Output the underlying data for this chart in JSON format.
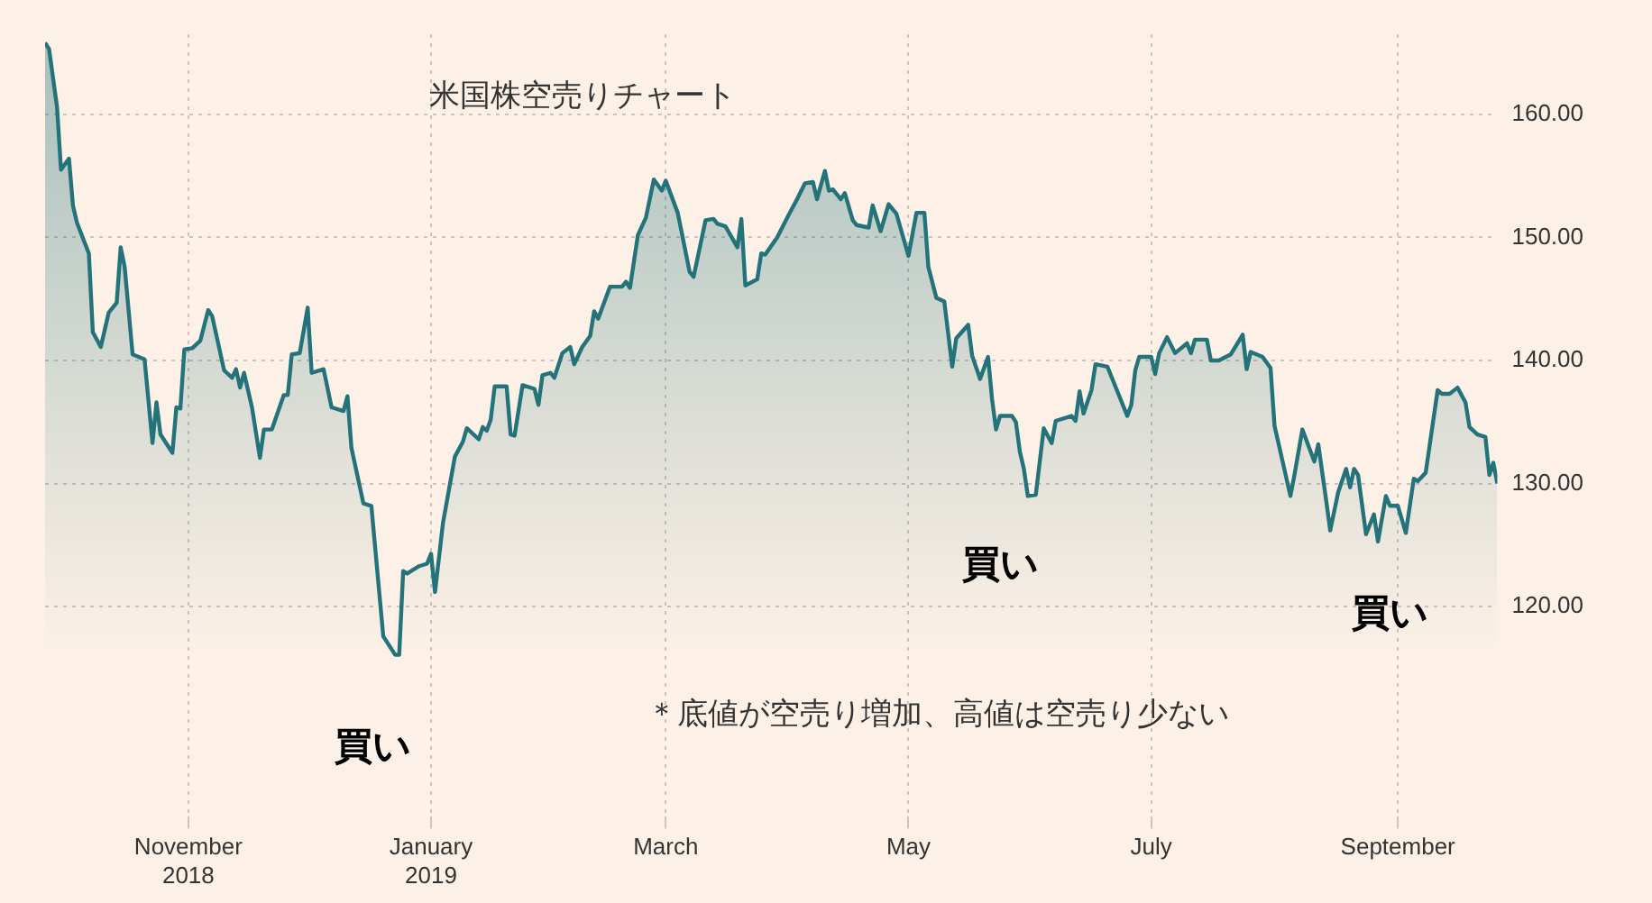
{
  "chart_data": {
    "type": "area",
    "title": "米国株空売りチャート",
    "x": [
      "2018-09-26",
      "2018-09-27",
      "2018-09-29",
      "2018-09-30",
      "2018-10-02",
      "2018-10-03",
      "2018-10-04",
      "2018-10-07",
      "2018-10-08",
      "2018-10-10",
      "2018-10-12",
      "2018-10-14",
      "2018-10-15",
      "2018-10-16",
      "2018-10-18",
      "2018-10-21",
      "2018-10-23",
      "2018-10-24",
      "2018-10-25",
      "2018-10-28",
      "2018-10-29",
      "2018-10-30",
      "2018-10-31",
      "2018-11-02",
      "2018-11-04",
      "2018-11-06",
      "2018-11-07",
      "2018-11-10",
      "2018-11-12",
      "2018-11-13",
      "2018-11-14",
      "2018-11-15",
      "2018-11-17",
      "2018-11-19",
      "2018-11-20",
      "2018-11-22",
      "2018-11-25",
      "2018-11-26",
      "2018-11-27",
      "2018-11-29",
      "2018-12-01",
      "2018-12-02",
      "2018-12-05",
      "2018-12-07",
      "2018-12-10",
      "2018-12-11",
      "2018-12-12",
      "2018-12-15",
      "2018-12-17",
      "2018-12-20",
      "2018-12-23",
      "2018-12-24",
      "2018-12-25",
      "2018-12-26",
      "2018-12-29",
      "2018-12-31",
      "2019-01-01",
      "2019-01-02",
      "2019-01-04",
      "2019-01-07",
      "2019-01-09",
      "2019-01-10",
      "2019-01-13",
      "2019-01-14",
      "2019-01-15",
      "2019-01-16",
      "2019-01-17",
      "2019-01-20",
      "2019-01-21",
      "2019-01-22",
      "2019-01-24",
      "2019-01-27",
      "2019-01-28",
      "2019-01-29",
      "2019-01-31",
      "2019-02-01",
      "2019-02-03",
      "2019-02-05",
      "2019-02-06",
      "2019-02-08",
      "2019-02-10",
      "2019-02-11",
      "2019-02-12",
      "2019-02-15",
      "2019-02-18",
      "2019-02-19",
      "2019-02-20",
      "2019-02-22",
      "2019-02-24",
      "2019-02-26",
      "2019-02-28",
      "2019-03-01",
      "2019-03-04",
      "2019-03-07",
      "2019-03-08",
      "2019-03-11",
      "2019-03-13",
      "2019-03-14",
      "2019-03-16",
      "2019-03-19",
      "2019-03-20",
      "2019-03-21",
      "2019-03-24",
      "2019-03-25",
      "2019-03-26",
      "2019-03-29",
      "2019-04-01",
      "2019-04-03",
      "2019-04-05",
      "2019-04-07",
      "2019-04-08",
      "2019-04-10",
      "2019-04-11",
      "2019-04-12",
      "2019-04-14",
      "2019-04-15",
      "2019-04-17",
      "2019-04-18",
      "2019-04-21",
      "2019-04-22",
      "2019-04-24",
      "2019-04-26",
      "2019-04-28",
      "2019-05-01",
      "2019-05-03",
      "2019-05-05",
      "2019-05-06",
      "2019-05-08",
      "2019-05-10",
      "2019-05-12",
      "2019-05-13",
      "2019-05-16",
      "2019-05-17",
      "2019-05-19",
      "2019-05-21",
      "2019-05-22",
      "2019-05-23",
      "2019-05-24",
      "2019-05-27",
      "2019-05-28",
      "2019-05-29",
      "2019-05-30",
      "2019-05-31",
      "2019-06-02",
      "2019-06-04",
      "2019-06-06",
      "2019-06-07",
      "2019-06-11",
      "2019-06-12",
      "2019-06-13",
      "2019-06-14",
      "2019-06-16",
      "2019-06-17",
      "2019-06-20",
      "2019-06-22",
      "2019-06-25",
      "2019-06-26",
      "2019-06-27",
      "2019-06-28",
      "2019-07-01",
      "2019-07-02",
      "2019-07-03",
      "2019-07-05",
      "2019-07-07",
      "2019-07-10",
      "2019-07-11",
      "2019-07-12",
      "2019-07-15",
      "2019-07-16",
      "2019-07-18",
      "2019-07-21",
      "2019-07-24",
      "2019-07-25",
      "2019-07-26",
      "2019-07-29",
      "2019-07-31",
      "2019-08-01",
      "2019-08-05",
      "2019-08-06",
      "2019-08-08",
      "2019-08-11",
      "2019-08-12",
      "2019-08-14",
      "2019-08-15",
      "2019-08-17",
      "2019-08-19",
      "2019-08-20",
      "2019-08-21",
      "2019-08-22",
      "2019-08-24",
      "2019-08-26",
      "2019-08-27",
      "2019-08-29",
      "2019-08-30",
      "2019-09-01",
      "2019-09-03",
      "2019-09-05",
      "2019-09-06",
      "2019-09-08",
      "2019-09-11",
      "2019-09-12",
      "2019-09-14",
      "2019-09-16",
      "2019-09-18",
      "2019-09-19",
      "2019-09-21",
      "2019-09-23",
      "2019-09-24",
      "2019-09-25",
      "2019-09-26"
    ],
    "series": [
      {
        "color": "#24737a",
        "values": [
          165.8,
          165.3,
          160.6,
          155.5,
          156.4,
          152.6,
          151.2,
          148.7,
          142.3,
          141.1,
          143.9,
          144.7,
          149.2,
          147.6,
          140.5,
          140.1,
          133.3,
          136.6,
          134.0,
          132.5,
          136.2,
          136.1,
          140.9,
          141.0,
          141.6,
          144.1,
          143.6,
          139.2,
          138.6,
          139.3,
          137.8,
          139.0,
          136.2,
          132.1,
          134.4,
          134.4,
          137.2,
          137.2,
          140.5,
          140.6,
          144.3,
          139.0,
          139.3,
          136.2,
          135.9,
          137.1,
          132.9,
          128.4,
          128.2,
          117.6,
          116.1,
          116.1,
          122.9,
          122.7,
          123.3,
          123.5,
          124.3,
          121.2,
          126.8,
          132.2,
          133.4,
          134.5,
          133.6,
          134.6,
          134.3,
          135.2,
          137.9,
          137.9,
          134.0,
          133.9,
          138.0,
          137.7,
          136.4,
          138.8,
          139.0,
          138.6,
          140.6,
          141.1,
          139.7,
          141.1,
          142.0,
          144.0,
          143.4,
          146.0,
          146.0,
          146.4,
          145.9,
          150.2,
          151.6,
          154.7,
          153.8,
          154.6,
          152.0,
          147.2,
          146.8,
          151.4,
          151.5,
          151.1,
          150.9,
          149.2,
          151.5,
          146.1,
          146.6,
          148.7,
          148.6,
          150.0,
          151.9,
          153.1,
          154.4,
          154.5,
          153.1,
          155.4,
          153.8,
          153.9,
          153.1,
          153.6,
          151.4,
          151.0,
          150.8,
          152.6,
          150.5,
          152.7,
          151.9,
          148.5,
          152.0,
          152.0,
          147.6,
          145.1,
          144.8,
          139.5,
          141.8,
          142.9,
          140.4,
          138.5,
          140.3,
          136.9,
          134.4,
          135.5,
          135.5,
          135.0,
          132.6,
          131.2,
          129.0,
          129.1,
          134.5,
          133.3,
          135.1,
          135.5,
          135.1,
          137.5,
          135.7,
          137.6,
          139.7,
          139.5,
          137.9,
          135.5,
          136.4,
          139.2,
          140.3,
          140.3,
          138.9,
          140.6,
          141.9,
          140.6,
          141.4,
          140.6,
          141.7,
          141.7,
          140.0,
          140.0,
          140.5,
          142.1,
          139.3,
          140.7,
          140.3,
          139.4,
          134.7,
          129.0,
          130.7,
          134.4,
          131.8,
          133.2,
          128.6,
          126.2,
          129.3,
          131.2,
          129.7,
          131.2,
          130.7,
          125.9,
          127.5,
          125.3,
          129.0,
          128.2,
          128.2,
          126.0,
          130.4,
          130.2,
          130.9,
          137.6,
          137.3,
          137.3,
          137.8,
          136.6,
          134.6,
          134.0,
          133.8,
          130.7,
          131.7,
          130.0
        ]
      }
    ],
    "xlim": [
      "2018-09-26",
      "2019-09-26"
    ],
    "xticks": [
      {
        "value": "2018-11-01",
        "label": "November 2018"
      },
      {
        "value": "2019-01-01",
        "label": "January 2019"
      },
      {
        "value": "2019-03-01",
        "label": "March"
      },
      {
        "value": "2019-05-01",
        "label": "May"
      },
      {
        "value": "2019-07-01",
        "label": "July"
      },
      {
        "value": "2019-09-01",
        "label": "September"
      }
    ],
    "ylim": [
      103,
      166.5
    ],
    "yticks": [
      {
        "value": 120,
        "label": "120.00"
      },
      {
        "value": 130,
        "label": "130.00"
      },
      {
        "value": 140,
        "label": "140.00"
      },
      {
        "value": 150,
        "label": "150.00"
      },
      {
        "value": 160,
        "label": "160.00"
      }
    ],
    "grid": true,
    "annotations": [
      "買い",
      "買い",
      "買い",
      "＊底値が空売り増加、高値は空売り少ない"
    ]
  }
}
